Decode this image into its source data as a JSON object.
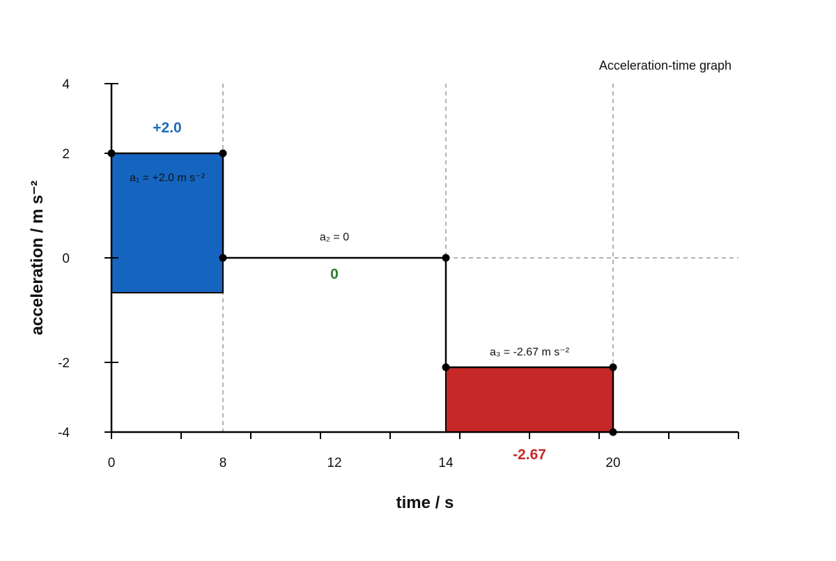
{
  "chart_data": {
    "type": "step",
    "title": "Acceleration-time graph",
    "xlabel": "time / s",
    "ylabel": "acceleration / m s⁻²",
    "grid": false,
    "y_ticks": [
      -4,
      -2,
      0,
      2,
      4
    ],
    "x_tick_labels": [
      "0",
      "8",
      "12",
      "14",
      "20"
    ],
    "segments": [
      {
        "label": "a₁ = +2.0 m s⁻²",
        "value_label": "+2.0",
        "color": "#1565c0",
        "value_color": "#1e6bb8"
      },
      {
        "label": "a₂ = 0",
        "value_label": "0",
        "color": "#000000",
        "value_color": "#2e7d32"
      },
      {
        "label": "a₃ = -2.67 m s⁻²",
        "value_label": "-2.67",
        "color": "#c62828",
        "value_color": "#c62828"
      }
    ]
  }
}
